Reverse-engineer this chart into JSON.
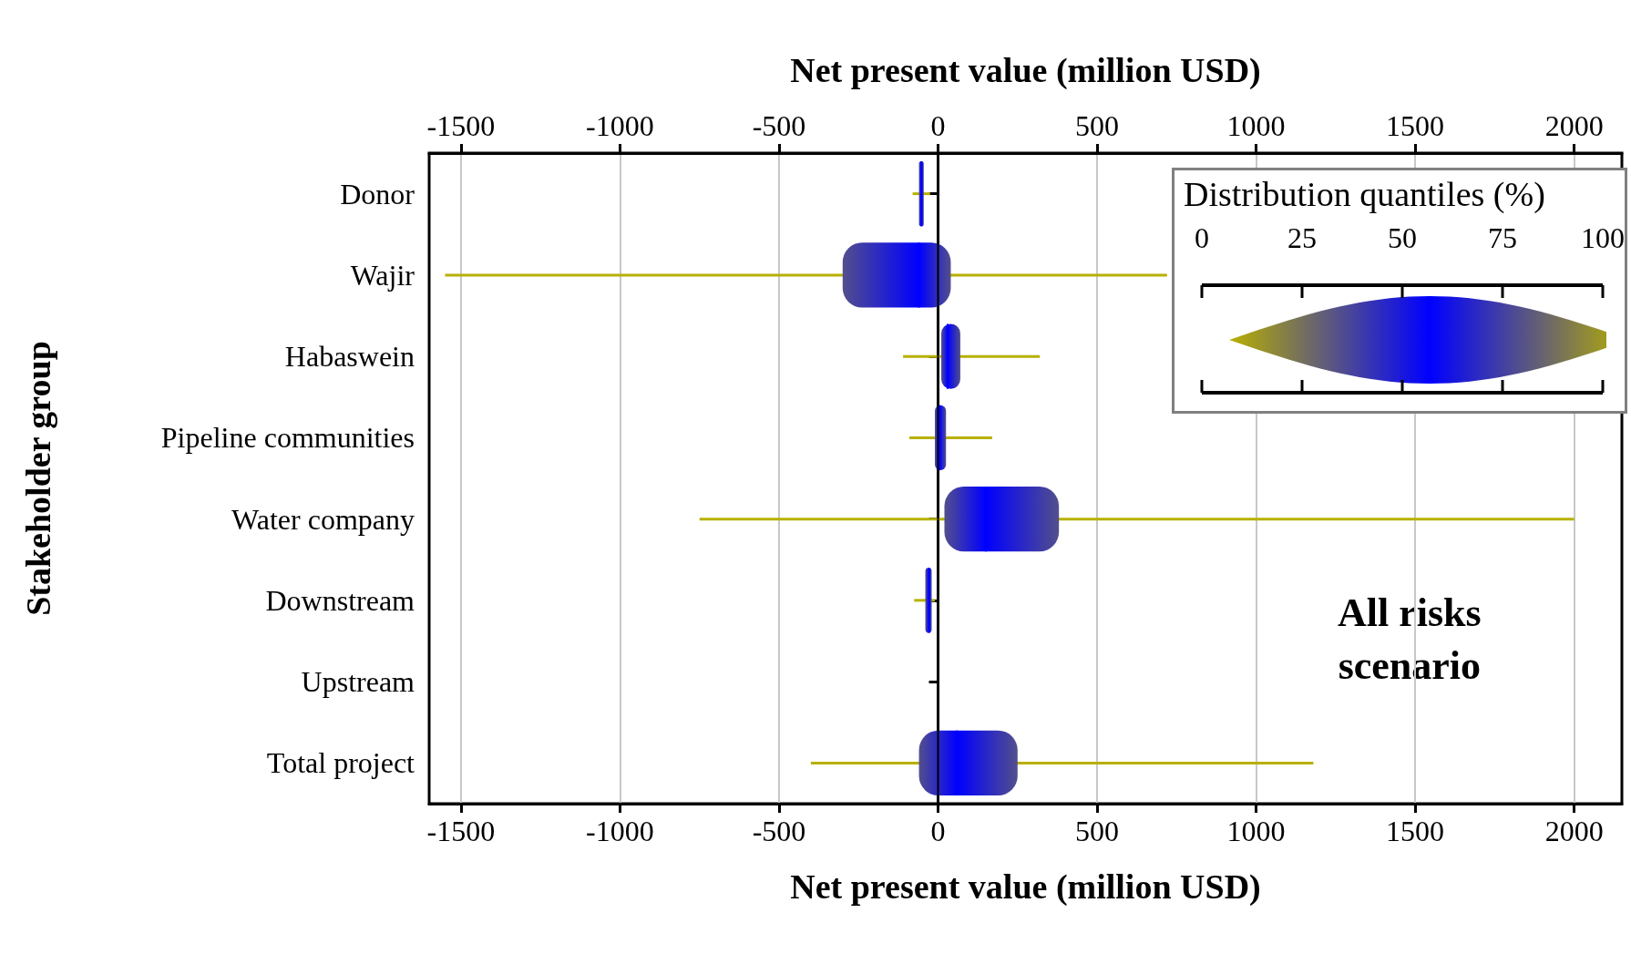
{
  "chart_data": {
    "type": "box",
    "orientation": "horizontal",
    "xlabel": "Net present value (million USD)",
    "x2label": "Net present value (million USD)",
    "ylabel": "Stakeholder group",
    "legend_title": "Distribution quantiles (%)",
    "categories": [
      "Donor",
      "Wajir",
      "Habaswein",
      "Pipeline communities",
      "Water company",
      "Downstream",
      "Upstream",
      "Total project"
    ],
    "series": [
      {
        "color": "#0000ff",
        "boxes": [
          {
            "low": -80,
            "q1": -60,
            "median": -52,
            "q3": -45,
            "high": -25
          },
          {
            "low": -1550,
            "q1": -300,
            "median": -60,
            "q3": 40,
            "high": 720
          },
          {
            "low": -110,
            "q1": 10,
            "median": 30,
            "q3": 70,
            "high": 320
          },
          {
            "low": -90,
            "q1": -10,
            "median": 5,
            "q3": 25,
            "high": 170
          },
          {
            "low": -750,
            "q1": 20,
            "median": 150,
            "q3": 380,
            "high": 2000
          },
          {
            "low": -75,
            "q1": -40,
            "median": -28,
            "q3": -20,
            "high": -10
          },
          null,
          {
            "low": -400,
            "q1": -60,
            "median": 60,
            "q3": 250,
            "high": 1180
          }
        ]
      }
    ],
    "colors": [
      "#b8b000",
      "#0000ff"
    ],
    "xlim": [
      -1600,
      2150
    ],
    "xticks": [
      -1500,
      -1000,
      -500,
      0,
      500,
      1000,
      1500,
      2000
    ],
    "x2lim": [
      -1600,
      2150
    ],
    "x2ticks": [
      -1500,
      -1000,
      -500,
      0,
      500,
      1000,
      1500,
      2000
    ],
    "grid": "x",
    "ref_lines": [
      {
        "axis": "x",
        "value": 0,
        "color": "#000000"
      }
    ],
    "annotations": [
      "All risks\nscenario",
      "0",
      "25",
      "50",
      "75",
      "100"
    ]
  }
}
